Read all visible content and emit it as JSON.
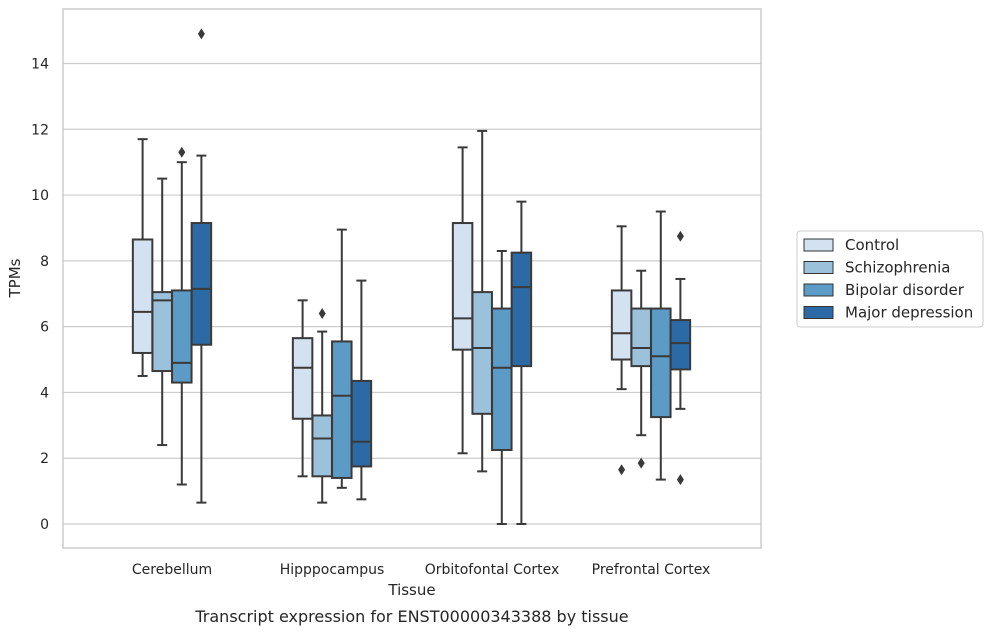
{
  "chart_data": {
    "type": "boxplot",
    "title": "",
    "xlabel": "Tissue",
    "ylabel": "TPMs",
    "caption": "Transcript expression for ENST00000343388 by tissue",
    "ylim": [
      -0.7,
      15.9
    ],
    "yticks": [
      0,
      2,
      4,
      6,
      8,
      10,
      12,
      14
    ],
    "grid": "horizontal",
    "legend_position": "right",
    "categories": [
      "Cerebellum",
      "Hipppocampus",
      "Orbitofontal Cortex",
      "Prefrontal Cortex"
    ],
    "series": [
      {
        "name": "Control",
        "color": "#d4e1f0",
        "boxes": [
          {
            "whislo": 4.5,
            "q1": 5.2,
            "med": 6.45,
            "q3": 8.65,
            "whishi": 11.7,
            "fliers": []
          },
          {
            "whislo": 1.45,
            "q1": 3.2,
            "med": 4.75,
            "q3": 5.65,
            "whishi": 6.8,
            "fliers": []
          },
          {
            "whislo": 2.15,
            "q1": 5.3,
            "med": 6.25,
            "q3": 9.15,
            "whishi": 11.45,
            "fliers": []
          },
          {
            "whislo": 4.1,
            "q1": 5.0,
            "med": 5.8,
            "q3": 7.1,
            "whishi": 9.05,
            "fliers": [
              1.65
            ]
          }
        ]
      },
      {
        "name": "Schizophrenia",
        "color": "#9cc1da",
        "boxes": [
          {
            "whislo": 2.4,
            "q1": 4.65,
            "med": 6.8,
            "q3": 7.05,
            "whishi": 10.5,
            "fliers": []
          },
          {
            "whislo": 0.65,
            "q1": 1.45,
            "med": 2.6,
            "q3": 3.3,
            "whishi": 5.85,
            "fliers": [
              6.4
            ]
          },
          {
            "whislo": 1.6,
            "q1": 3.35,
            "med": 5.35,
            "q3": 7.05,
            "whishi": 11.95,
            "fliers": []
          },
          {
            "whislo": 2.7,
            "q1": 4.8,
            "med": 5.35,
            "q3": 6.55,
            "whishi": 7.7,
            "fliers": [
              1.85
            ]
          }
        ]
      },
      {
        "name": "Bipolar disorder",
        "color": "#5b9bc5",
        "boxes": [
          {
            "whislo": 1.2,
            "q1": 4.3,
            "med": 4.9,
            "q3": 7.1,
            "whishi": 11.0,
            "fliers": [
              11.3
            ]
          },
          {
            "whislo": 1.1,
            "q1": 1.4,
            "med": 3.9,
            "q3": 5.55,
            "whishi": 8.95,
            "fliers": []
          },
          {
            "whislo": 0.0,
            "q1": 2.25,
            "med": 4.75,
            "q3": 6.55,
            "whishi": 8.3,
            "fliers": []
          },
          {
            "whislo": 1.35,
            "q1": 3.25,
            "med": 5.1,
            "q3": 6.55,
            "whishi": 9.5,
            "fliers": []
          }
        ]
      },
      {
        "name": "Major depression",
        "color": "#2c6aa6",
        "boxes": [
          {
            "whislo": 0.65,
            "q1": 5.45,
            "med": 7.15,
            "q3": 9.15,
            "whishi": 11.2,
            "fliers": [
              14.9
            ]
          },
          {
            "whislo": 0.75,
            "q1": 1.75,
            "med": 2.5,
            "q3": 4.35,
            "whishi": 7.4,
            "fliers": []
          },
          {
            "whislo": 0.0,
            "q1": 4.8,
            "med": 7.2,
            "q3": 8.25,
            "whishi": 9.8,
            "fliers": []
          },
          {
            "whislo": 3.5,
            "q1": 4.7,
            "med": 5.5,
            "q3": 6.2,
            "whishi": 7.45,
            "fliers": [
              8.75,
              1.35
            ]
          }
        ]
      }
    ]
  }
}
